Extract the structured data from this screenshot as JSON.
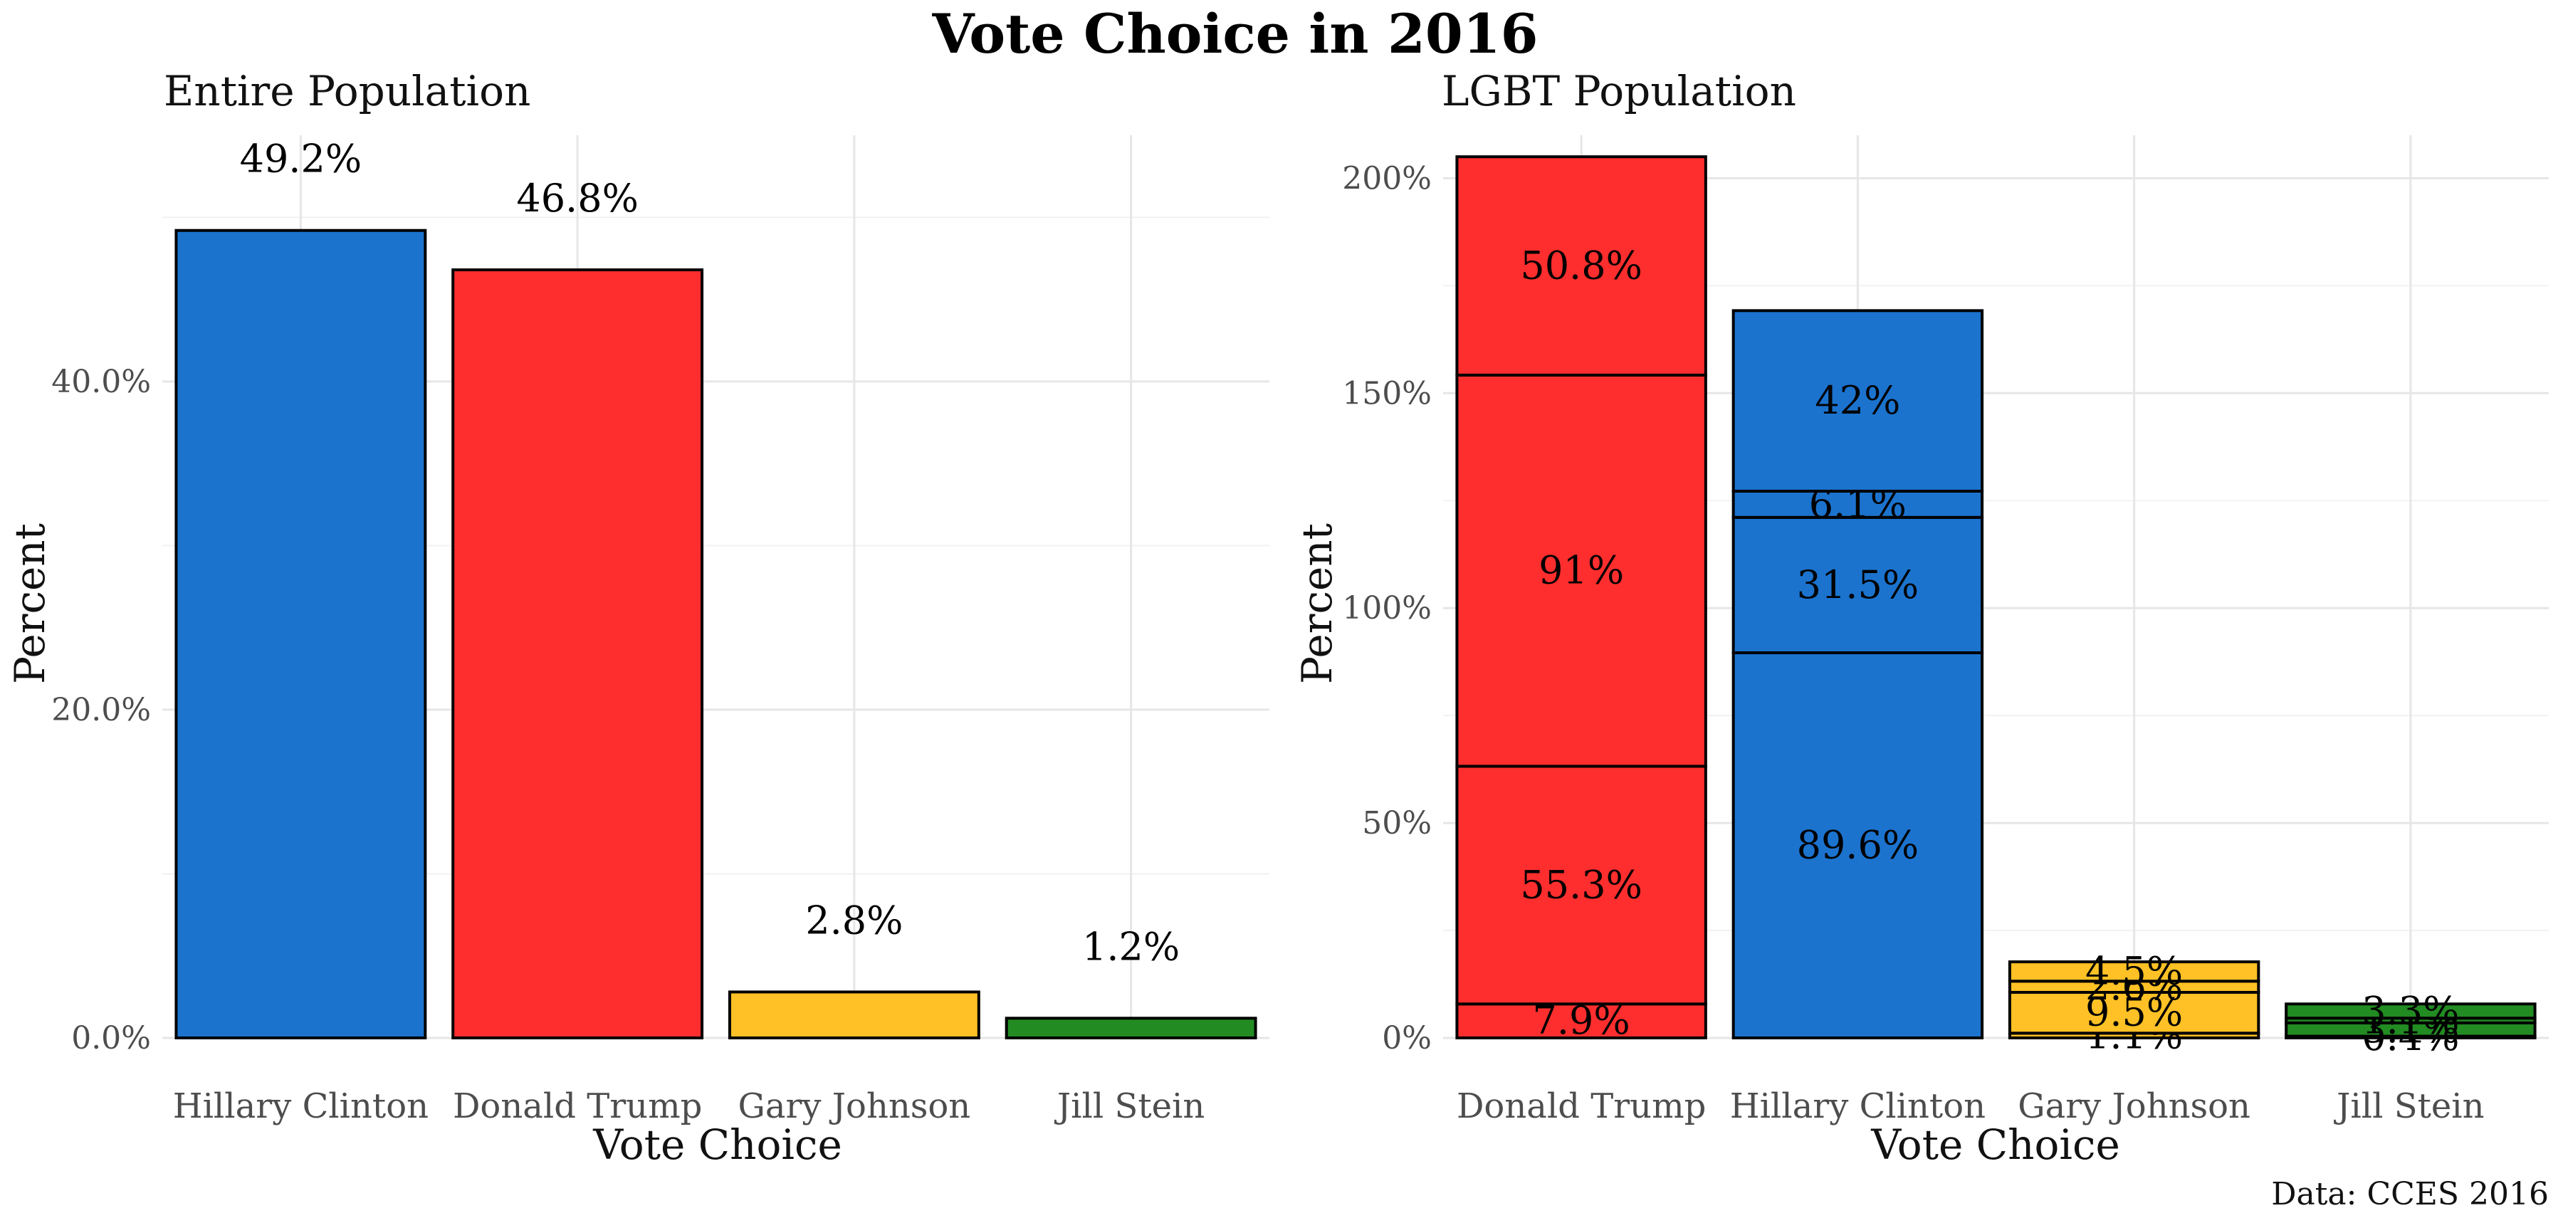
{
  "title": "Vote Choice in 2016",
  "caption": "Data: CCES 2016",
  "colors": {
    "Hillary Clinton": "#1b73ce",
    "Donald Trump": "#ff2e2e",
    "Gary Johnson": "#ffc125",
    "Jill Stein": "#228b22"
  },
  "chart_data": [
    {
      "type": "bar",
      "title": "Entire Population",
      "xlabel": "Vote Choice",
      "ylabel": "Percent",
      "ylim": [
        0,
        55
      ],
      "yticks": [
        0,
        20,
        40
      ],
      "ytick_labels": [
        "0.0%",
        "20.0%",
        "40.0%"
      ],
      "categories": [
        "Hillary Clinton",
        "Donald Trump",
        "Gary Johnson",
        "Jill Stein"
      ],
      "values": [
        49.2,
        46.8,
        2.8,
        1.2
      ],
      "data_labels": [
        "49.2%",
        "46.8%",
        "2.8%",
        "1.2%"
      ]
    },
    {
      "type": "bar",
      "stacked": true,
      "title": "LGBT Population",
      "xlabel": "Vote Choice",
      "ylabel": "Percent",
      "ylim": [
        0,
        210
      ],
      "yticks": [
        0,
        50,
        100,
        150,
        200
      ],
      "ytick_labels": [
        "0%",
        "50%",
        "100%",
        "150%",
        "200%"
      ],
      "categories": [
        "Donald Trump",
        "Hillary Clinton",
        "Gary Johnson",
        "Jill Stein"
      ],
      "segments": [
        [
          {
            "value": 7.9,
            "label": "7.9%"
          },
          {
            "value": 55.3,
            "label": "55.3%"
          },
          {
            "value": 91,
            "label": "91%"
          },
          {
            "value": 50.8,
            "label": "50.8%"
          }
        ],
        [
          {
            "value": 89.6,
            "label": "89.6%"
          },
          {
            "value": 31.5,
            "label": "31.5%"
          },
          {
            "value": 6.1,
            "label": "6.1%"
          },
          {
            "value": 42,
            "label": "42%"
          }
        ],
        [
          {
            "value": 1.1,
            "label": "1.1%"
          },
          {
            "value": 9.5,
            "label": "9.5%"
          },
          {
            "value": 2.6,
            "label": "2.6%"
          },
          {
            "value": 4.5,
            "label": "4.5%"
          }
        ],
        [
          {
            "value": 0.4,
            "label": "0.4%"
          },
          {
            "value": 3.1,
            "label": "3.1%"
          },
          {
            "value": 1.1,
            "label": "1.1%"
          },
          {
            "value": 3.3,
            "label": "3.3%"
          }
        ]
      ]
    }
  ]
}
